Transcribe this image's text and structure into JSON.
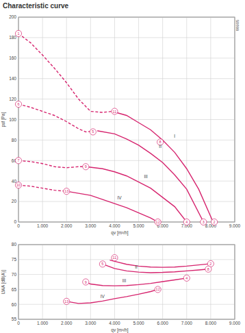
{
  "chart_data": [
    {
      "type": "line",
      "title": "Characteristic curve",
      "side_label": "88905",
      "x_label": "qv [m³/h]",
      "y_label": "psf [Pa]",
      "color": "#d6246e",
      "grid": true,
      "xlim": [
        0,
        9000
      ],
      "xticks": [
        0,
        {
          "value": 1000,
          "label": "1.000"
        },
        {
          "value": 2000,
          "label": "2.000"
        },
        {
          "value": 3000,
          "label": "3.000"
        },
        {
          "value": 4000,
          "label": "4.000"
        },
        {
          "value": 5000,
          "label": "5.000"
        },
        {
          "value": 6000,
          "label": "6.000"
        },
        {
          "value": 7000,
          "label": "7.000"
        },
        {
          "value": 8000,
          "label": "8.000"
        },
        {
          "value": 9000,
          "label": "9.000"
        }
      ],
      "ylim": [
        0,
        200
      ],
      "yticks": [
        0,
        20,
        40,
        60,
        80,
        100,
        120,
        140,
        160,
        180,
        200
      ],
      "series": [
        {
          "line_style": "dashed",
          "x": [
            0,
            500,
            1000,
            1500,
            2000,
            2500,
            3000,
            3500,
            3900
          ],
          "values": [
            184,
            175,
            163,
            150,
            136,
            120,
            108,
            107,
            108
          ]
        },
        {
          "line_style": "solid",
          "x": [
            3900,
            4500,
            5000,
            5500,
            6000,
            6500,
            7000,
            7500,
            8100
          ],
          "values": [
            108,
            104,
            97,
            90,
            80,
            68,
            52,
            32,
            0
          ]
        },
        {
          "line_style": "dashed",
          "x": [
            0,
            500,
            1000,
            1500,
            2000,
            2500,
            2800,
            3300
          ],
          "values": [
            115,
            112,
            108,
            104,
            98,
            91,
            88,
            89
          ]
        },
        {
          "line_style": "solid",
          "x": [
            3300,
            4000,
            4500,
            5000,
            5500,
            6000,
            6500,
            7000,
            7700
          ],
          "values": [
            89,
            86,
            81,
            75,
            67,
            58,
            46,
            32,
            0
          ]
        },
        {
          "line_style": "dashed",
          "x": [
            0,
            500,
            1000,
            1500,
            2000,
            2500,
            2800
          ],
          "values": [
            60,
            59,
            57,
            54,
            53,
            54,
            54
          ]
        },
        {
          "line_style": "solid",
          "x": [
            2800,
            3500,
            4000,
            4500,
            5000,
            5500,
            6000,
            6500,
            7000
          ],
          "values": [
            54,
            52,
            49,
            45,
            39,
            33,
            24,
            15,
            0
          ]
        },
        {
          "line_style": "dashed",
          "x": [
            0,
            500,
            1000,
            1500,
            2000
          ],
          "values": [
            36,
            35,
            33,
            31,
            30
          ]
        },
        {
          "line_style": "solid",
          "x": [
            2000,
            2500,
            3000,
            3500,
            4000,
            4500,
            5000,
            5500,
            5800
          ],
          "values": [
            30,
            28,
            26,
            22,
            18,
            14,
            9,
            4,
            0
          ]
        }
      ],
      "annotations": [
        {
          "text": "1",
          "x": 0,
          "y": 184,
          "marker": "circle"
        },
        {
          "text": "6",
          "x": 0,
          "y": 115,
          "marker": "circle"
        },
        {
          "text": "7",
          "x": 0,
          "y": 60,
          "marker": "circle"
        },
        {
          "text": "10",
          "x": 0,
          "y": 36,
          "marker": "circle"
        },
        {
          "text": "11",
          "x": 4000,
          "y": 108,
          "marker": "circle"
        },
        {
          "text": "5",
          "x": 3100,
          "y": 88,
          "marker": "circle"
        },
        {
          "text": "9",
          "x": 2800,
          "y": 54,
          "marker": "circle"
        },
        {
          "text": "13",
          "x": 2000,
          "y": 30,
          "marker": "circle"
        },
        {
          "text": "8",
          "x": 5900,
          "y": 78,
          "marker": "circle"
        },
        {
          "text": "12",
          "x": 5800,
          "y": 0,
          "marker": "circle"
        },
        {
          "text": "4",
          "x": 7000,
          "y": 0,
          "marker": "circle"
        },
        {
          "text": "3",
          "x": 7700,
          "y": 0,
          "marker": "circle"
        },
        {
          "text": "2",
          "x": 8150,
          "y": 0,
          "marker": "circle"
        },
        {
          "text": "I",
          "x": 6500,
          "y": 82
        },
        {
          "text": "II",
          "x": 5900,
          "y": 72
        },
        {
          "text": "III",
          "x": 5300,
          "y": 43
        },
        {
          "text": "IV",
          "x": 4200,
          "y": 22
        }
      ]
    },
    {
      "type": "line",
      "x_label": "qv [m³/h]",
      "y_label": "LWA [dB(A)]",
      "color": "#d6246e",
      "grid": true,
      "xlim": [
        0,
        9000
      ],
      "xticks": [
        0,
        {
          "value": 1000,
          "label": "1.000"
        },
        {
          "value": 2000,
          "label": "2.000"
        },
        {
          "value": 3000,
          "label": "3.000"
        },
        {
          "value": 4000,
          "label": "4.000"
        },
        {
          "value": 5000,
          "label": "5.000"
        },
        {
          "value": 6000,
          "label": "6.000"
        },
        {
          "value": 7000,
          "label": "7.000"
        },
        {
          "value": 8000,
          "label": "8.000"
        },
        {
          "value": 9000,
          "label": "9.000"
        }
      ],
      "ylim": [
        55,
        80
      ],
      "yticks": [
        55,
        60,
        65,
        70,
        75,
        80
      ],
      "series": [
        {
          "line_style": "solid",
          "x": [
            3800,
            4000,
            4500,
            5000,
            5500,
            6000,
            6500,
            7000,
            7500,
            8000
          ],
          "values": [
            74.8,
            74.4,
            73.4,
            72.8,
            72.5,
            72.4,
            72.5,
            72.8,
            73.2,
            73.6
          ]
        },
        {
          "line_style": "solid",
          "x": [
            3500,
            4000,
            4500,
            5000,
            5500,
            6000,
            6500,
            7000,
            7500,
            7900
          ],
          "values": [
            73.5,
            72.0,
            71.2,
            70.8,
            70.6,
            70.7,
            70.9,
            71.2,
            71.5,
            71.8
          ]
        },
        {
          "line_style": "solid",
          "x": [
            2800,
            3000,
            3500,
            4000,
            4500,
            5000,
            5500,
            6000,
            6500,
            7000
          ],
          "values": [
            67.5,
            66.8,
            66.3,
            66.2,
            66.3,
            66.6,
            67.0,
            67.6,
            68.2,
            68.8
          ]
        },
        {
          "line_style": "solid",
          "x": [
            2000,
            2500,
            3000,
            3500,
            4000,
            4500,
            5000,
            5500,
            5800
          ],
          "values": [
            61.0,
            60.3,
            60.5,
            61.1,
            61.9,
            62.6,
            63.4,
            64.3,
            65.0
          ]
        }
      ],
      "annotations": [
        {
          "text": "11",
          "x": 4000,
          "y": 75.6,
          "marker": "circle"
        },
        {
          "text": "5",
          "x": 3500,
          "y": 73.5,
          "marker": "circle"
        },
        {
          "text": "9",
          "x": 2800,
          "y": 67.5,
          "marker": "circle"
        },
        {
          "text": "13",
          "x": 2000,
          "y": 61,
          "marker": "circle"
        },
        {
          "text": "2",
          "x": 8000,
          "y": 73.6,
          "marker": "circle"
        },
        {
          "text": "8",
          "x": 7900,
          "y": 71.8,
          "marker": "circle"
        },
        {
          "text": "4",
          "x": 7000,
          "y": 68.8,
          "marker": "circle"
        },
        {
          "text": "12",
          "x": 5800,
          "y": 65,
          "marker": "circle"
        },
        {
          "text": "II",
          "x": 4900,
          "y": 71.9
        },
        {
          "text": "III",
          "x": 4400,
          "y": 67.4
        },
        {
          "text": "IV",
          "x": 3500,
          "y": 62.2
        }
      ]
    }
  ]
}
